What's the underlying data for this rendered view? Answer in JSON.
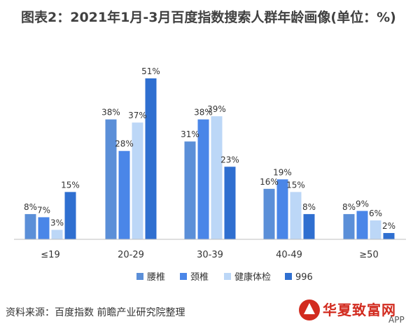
{
  "title": "图表2：2021年1月-3月百度指数搜索人群年龄画像(单位：%)",
  "source": "资料来源：百度指数 前瞻产业研究院整理",
  "watermark": {
    "brand": "华夏致富网",
    "app": "APP"
  },
  "colors": {
    "s1": "#5b8fd8",
    "s2": "#4a86e8",
    "s3": "#bcd7f7",
    "s4": "#2f6fd0",
    "axis": "#bfbfbf"
  },
  "chart_data": {
    "type": "bar",
    "categories": [
      "≤19",
      "20-29",
      "30-39",
      "40-49",
      "≥50"
    ],
    "series": [
      {
        "name": "腰椎",
        "values": [
          8,
          38,
          31,
          16,
          8
        ]
      },
      {
        "name": "颈椎",
        "values": [
          7,
          28,
          38,
          19,
          9
        ]
      },
      {
        "name": "健康体检",
        "values": [
          3,
          37,
          39,
          15,
          6
        ]
      },
      {
        "name": "996",
        "values": [
          15,
          51,
          23,
          8,
          2
        ]
      }
    ],
    "ylim": [
      0,
      51
    ],
    "grid": false,
    "legend_position": "bottom-center",
    "data_labels": true,
    "value_suffix": "%"
  }
}
